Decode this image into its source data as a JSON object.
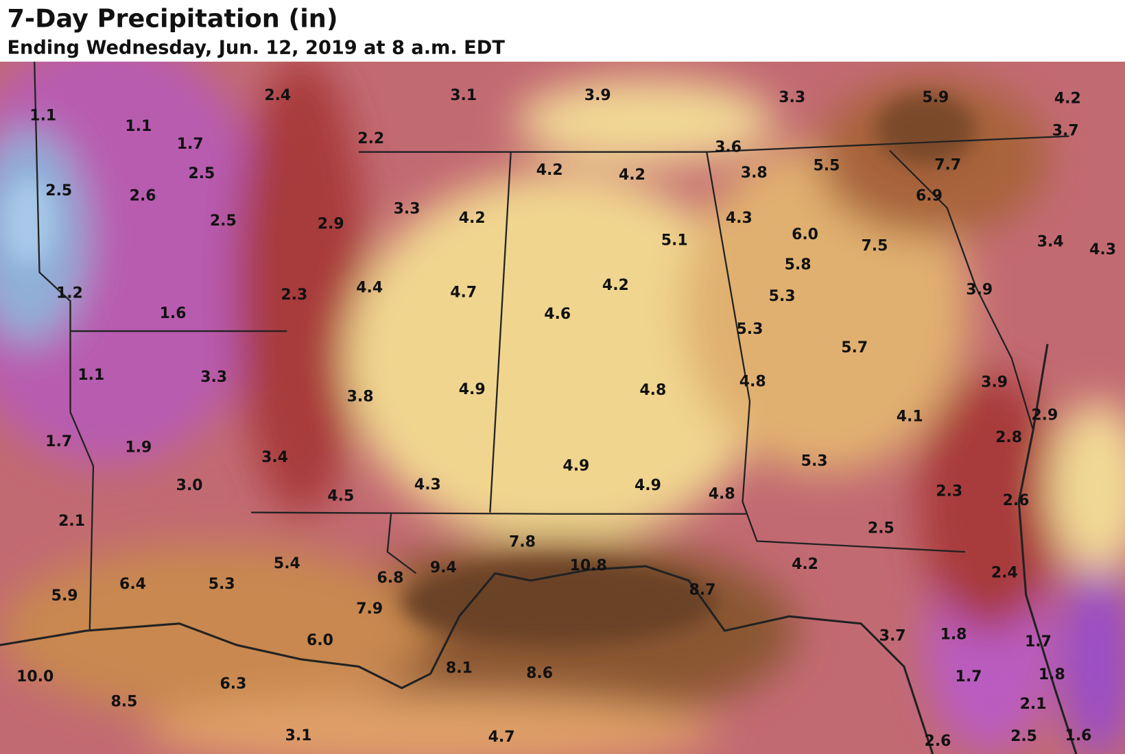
{
  "header": {
    "title": "7-Day Precipitation (in)",
    "subtitle": "Ending Wednesday, Jun. 12, 2019 at 8 a.m. EDT"
  },
  "map": {
    "labels": [
      "1.1",
      "1.1",
      "1.7",
      "2.4",
      "3.1",
      "3.9",
      "3.3",
      "5.9",
      "4.2",
      "3.7",
      "2.2",
      "3.6",
      "2.5",
      "2.5",
      "2.6",
      "4.2",
      "4.2",
      "3.8",
      "5.5",
      "7.7",
      "6.9",
      "2.5",
      "2.9",
      "3.3",
      "4.2",
      "4.3",
      "6.0",
      "7.5",
      "5.1",
      "3.4",
      "4.3",
      "1.2",
      "2.3",
      "4.4",
      "4.7",
      "4.2",
      "5.8",
      "5.3",
      "3.9",
      "1.6",
      "4.6",
      "5.3",
      "5.7",
      "1.1",
      "3.3",
      "4.9",
      "4.8",
      "4.8",
      "3.9",
      "3.8",
      "4.1",
      "2.9",
      "1.7",
      "1.9",
      "3.4",
      "2.8",
      "4.9",
      "3.0",
      "4.3",
      "4.9",
      "4.8",
      "5.3",
      "4.5",
      "2.3",
      "2.6",
      "2.1",
      "2.5",
      "7.8",
      "5.4",
      "9.4",
      "10.8",
      "4.2",
      "2.4",
      "6.4",
      "5.3",
      "6.8",
      "8.7",
      "5.9",
      "7.9",
      "3.7",
      "1.8",
      "1.7",
      "6.0",
      "8.1",
      "8.6",
      "1.7",
      "1.8",
      "10.0",
      "6.3",
      "8.5",
      "2.1",
      "3.1",
      "4.7",
      "2.6",
      "2.5",
      "1.6"
    ]
  }
}
